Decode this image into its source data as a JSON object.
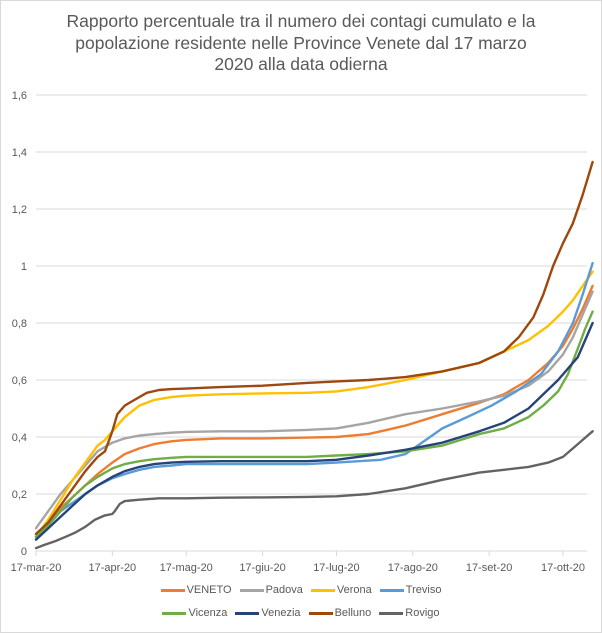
{
  "chart_data": {
    "type": "line",
    "title": "Rapporto percentuale tra il numero dei contagi cumulato e la popolazione residente nelle Province Venete dal 17 marzo 2020 alla data odierna",
    "title_lines": [
      "Rapporto percentuale tra il numero dei contagi cumulato e la",
      "popolazione residente nelle Province Venete dal 17 marzo",
      "2020 alla data odierna"
    ],
    "xlabel": "",
    "ylabel": "",
    "x_unit": "days since 17-mar-20",
    "xlim": [
      0,
      226
    ],
    "ylim": [
      0,
      1.6
    ],
    "grid": true,
    "legend_position": "bottom",
    "x_ticks": [
      {
        "day": 0,
        "label": "17-mar-20"
      },
      {
        "day": 31,
        "label": "17-apr-20"
      },
      {
        "day": 61,
        "label": "17-mag-20"
      },
      {
        "day": 92,
        "label": "17-giu-20"
      },
      {
        "day": 122,
        "label": "17-lug-20"
      },
      {
        "day": 153,
        "label": "17-ago-20"
      },
      {
        "day": 184,
        "label": "17-set-20"
      },
      {
        "day": 214,
        "label": "17-ott-20"
      }
    ],
    "y_ticks": [
      {
        "value": 0,
        "label": "0"
      },
      {
        "value": 0.2,
        "label": "0,2"
      },
      {
        "value": 0.4,
        "label": "0,4"
      },
      {
        "value": 0.6,
        "label": "0,6"
      },
      {
        "value": 0.8,
        "label": "0,8"
      },
      {
        "value": 1.0,
        "label": "1"
      },
      {
        "value": 1.2,
        "label": "1,2"
      },
      {
        "value": 1.4,
        "label": "1,4"
      },
      {
        "value": 1.6,
        "label": "1,6"
      }
    ],
    "series": [
      {
        "name": "VENETO",
        "color": "#ED7D31",
        "x": [
          0,
          5,
          10,
          15,
          20,
          25,
          31,
          36,
          42,
          48,
          55,
          61,
          75,
          92,
          110,
          122,
          135,
          150,
          165,
          180,
          190,
          200,
          208,
          214,
          218,
          222,
          226
        ],
        "y": [
          0.05,
          0.1,
          0.15,
          0.19,
          0.23,
          0.27,
          0.31,
          0.34,
          0.36,
          0.375,
          0.385,
          0.39,
          0.395,
          0.395,
          0.398,
          0.4,
          0.41,
          0.44,
          0.48,
          0.52,
          0.55,
          0.6,
          0.66,
          0.72,
          0.78,
          0.85,
          0.93
        ]
      },
      {
        "name": "Padova",
        "color": "#A5A5A5",
        "x": [
          0,
          5,
          10,
          15,
          20,
          25,
          31,
          36,
          42,
          48,
          55,
          61,
          75,
          92,
          110,
          122,
          135,
          150,
          165,
          180,
          190,
          200,
          208,
          214,
          218,
          222,
          226
        ],
        "y": [
          0.08,
          0.14,
          0.2,
          0.25,
          0.3,
          0.35,
          0.38,
          0.395,
          0.405,
          0.41,
          0.415,
          0.418,
          0.42,
          0.42,
          0.425,
          0.43,
          0.45,
          0.48,
          0.5,
          0.525,
          0.545,
          0.58,
          0.63,
          0.69,
          0.75,
          0.83,
          0.91
        ]
      },
      {
        "name": "Verona",
        "color": "#FFC000",
        "x": [
          0,
          5,
          10,
          15,
          20,
          25,
          28,
          31,
          36,
          42,
          48,
          55,
          61,
          75,
          92,
          110,
          122,
          135,
          150,
          165,
          180,
          190,
          200,
          208,
          214,
          218,
          222,
          226
        ],
        "y": [
          0.05,
          0.11,
          0.18,
          0.25,
          0.31,
          0.37,
          0.39,
          0.42,
          0.47,
          0.51,
          0.53,
          0.54,
          0.545,
          0.55,
          0.553,
          0.555,
          0.56,
          0.575,
          0.6,
          0.63,
          0.66,
          0.7,
          0.74,
          0.79,
          0.84,
          0.88,
          0.93,
          0.98
        ]
      },
      {
        "name": "Treviso",
        "color": "#5B9BD5",
        "x": [
          0,
          5,
          10,
          15,
          20,
          25,
          31,
          36,
          42,
          48,
          55,
          61,
          75,
          92,
          110,
          122,
          140,
          150,
          155,
          160,
          165,
          175,
          185,
          195,
          205,
          212,
          218,
          222,
          226
        ],
        "y": [
          0.04,
          0.09,
          0.14,
          0.17,
          0.2,
          0.23,
          0.255,
          0.27,
          0.285,
          0.295,
          0.3,
          0.305,
          0.305,
          0.305,
          0.305,
          0.31,
          0.32,
          0.34,
          0.37,
          0.4,
          0.43,
          0.47,
          0.51,
          0.56,
          0.62,
          0.7,
          0.8,
          0.9,
          1.01
        ]
      },
      {
        "name": "Vicenza",
        "color": "#70AD47",
        "x": [
          0,
          5,
          10,
          15,
          20,
          25,
          31,
          36,
          42,
          48,
          55,
          61,
          75,
          92,
          110,
          122,
          135,
          150,
          165,
          180,
          190,
          200,
          206,
          212,
          216,
          220,
          223,
          226
        ],
        "y": [
          0.05,
          0.09,
          0.14,
          0.19,
          0.23,
          0.26,
          0.29,
          0.305,
          0.315,
          0.322,
          0.327,
          0.33,
          0.33,
          0.33,
          0.33,
          0.335,
          0.34,
          0.35,
          0.37,
          0.41,
          0.43,
          0.47,
          0.51,
          0.56,
          0.62,
          0.71,
          0.78,
          0.84
        ]
      },
      {
        "name": "Venezia",
        "color": "#264478",
        "x": [
          0,
          5,
          10,
          15,
          20,
          25,
          31,
          36,
          42,
          48,
          55,
          61,
          75,
          92,
          110,
          122,
          135,
          150,
          165,
          180,
          190,
          200,
          206,
          212,
          216,
          220,
          223,
          226
        ],
        "y": [
          0.04,
          0.08,
          0.12,
          0.16,
          0.2,
          0.23,
          0.26,
          0.28,
          0.295,
          0.305,
          0.31,
          0.313,
          0.315,
          0.315,
          0.315,
          0.32,
          0.335,
          0.355,
          0.38,
          0.42,
          0.45,
          0.5,
          0.55,
          0.6,
          0.64,
          0.68,
          0.74,
          0.8
        ]
      },
      {
        "name": "Belluno",
        "color": "#9E480E",
        "x": [
          0,
          5,
          10,
          15,
          20,
          25,
          28,
          31,
          33,
          36,
          40,
          45,
          50,
          55,
          61,
          75,
          92,
          110,
          122,
          135,
          150,
          165,
          180,
          190,
          196,
          202,
          206,
          210,
          214,
          218,
          222,
          226
        ],
        "y": [
          0.06,
          0.1,
          0.16,
          0.22,
          0.28,
          0.33,
          0.35,
          0.42,
          0.48,
          0.51,
          0.53,
          0.555,
          0.565,
          0.568,
          0.57,
          0.575,
          0.58,
          0.59,
          0.595,
          0.6,
          0.61,
          0.63,
          0.66,
          0.7,
          0.75,
          0.82,
          0.9,
          1.0,
          1.08,
          1.15,
          1.25,
          1.365
        ]
      },
      {
        "name": "Rovigo",
        "color": "#636363",
        "x": [
          0,
          3,
          8,
          12,
          16,
          20,
          24,
          28,
          31,
          32,
          34,
          36,
          42,
          50,
          61,
          75,
          92,
          110,
          122,
          135,
          150,
          165,
          180,
          190,
          200,
          208,
          214,
          218,
          222,
          226
        ],
        "y": [
          0.01,
          0.02,
          0.035,
          0.05,
          0.065,
          0.085,
          0.11,
          0.125,
          0.13,
          0.14,
          0.165,
          0.175,
          0.18,
          0.185,
          0.185,
          0.187,
          0.188,
          0.19,
          0.192,
          0.2,
          0.22,
          0.25,
          0.275,
          0.285,
          0.295,
          0.31,
          0.33,
          0.36,
          0.39,
          0.42
        ]
      }
    ]
  }
}
